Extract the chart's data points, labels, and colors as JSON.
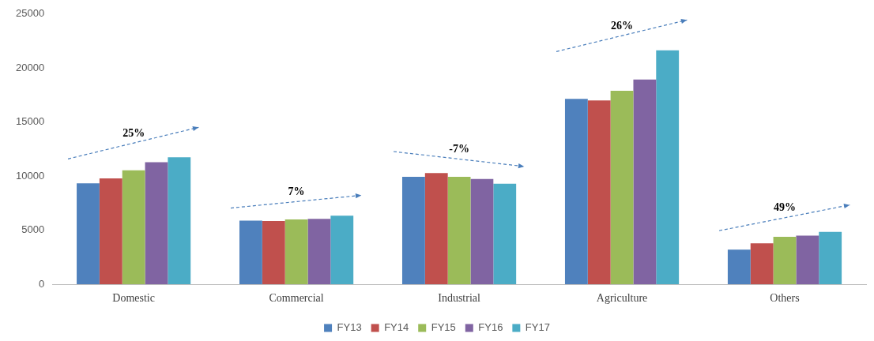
{
  "chart_data": {
    "type": "bar",
    "categories": [
      "Domestic",
      "Commercial",
      "Industrial",
      "Agriculture",
      "Others"
    ],
    "series": [
      {
        "name": "FY13",
        "color": "#4f81bd",
        "values": [
          9350,
          5900,
          9950,
          17150,
          3200
        ]
      },
      {
        "name": "FY14",
        "color": "#c0504d",
        "values": [
          9800,
          5850,
          10300,
          17000,
          3800
        ]
      },
      {
        "name": "FY15",
        "color": "#9bbb59",
        "values": [
          10550,
          6000,
          9950,
          17900,
          4400
        ]
      },
      {
        "name": "FY16",
        "color": "#8064a2",
        "values": [
          11300,
          6050,
          9750,
          18950,
          4500
        ]
      },
      {
        "name": "FY17",
        "color": "#4bacc6",
        "values": [
          11750,
          6350,
          9300,
          21650,
          4850
        ]
      }
    ],
    "ylim": [
      0,
      25000
    ],
    "yticks": [
      0,
      5000,
      10000,
      15000,
      20000,
      25000
    ],
    "grid": false,
    "legend": "bottom",
    "annotations": [
      "25%",
      "7%",
      "-7%",
      "26%",
      "49%"
    ]
  }
}
